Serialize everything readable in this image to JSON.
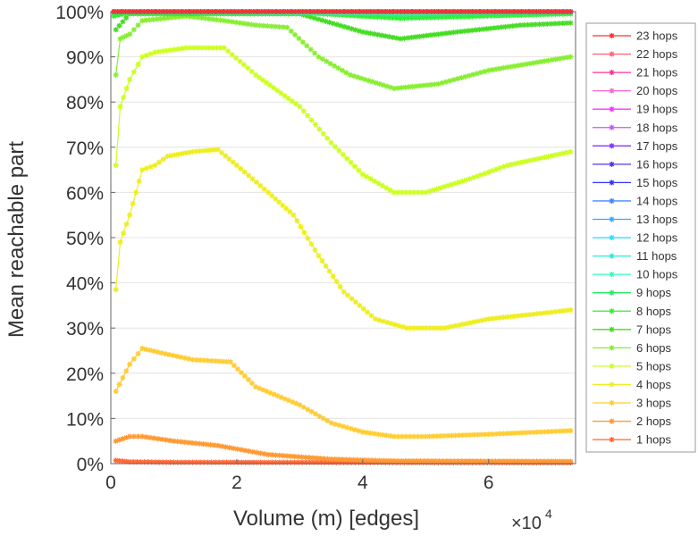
{
  "chart_data": {
    "type": "line",
    "xlabel": "Volume (m) [edges]",
    "ylabel": "Mean reachable part",
    "x_multiplier": "×10",
    "x_multiplier_exp": "4",
    "xlim": [
      0,
      7.38
    ],
    "ylim": [
      0,
      100
    ],
    "xticks": [
      "0",
      "2",
      "4",
      "6"
    ],
    "xtick_values": [
      0,
      2,
      4,
      6
    ],
    "yticks": [
      "0%",
      "10%",
      "20%",
      "30%",
      "40%",
      "50%",
      "60%",
      "70%",
      "80%",
      "90%",
      "100%"
    ],
    "ytick_values": [
      0,
      10,
      20,
      30,
      40,
      50,
      60,
      70,
      80,
      90,
      100
    ],
    "grid": true,
    "legend_position": "right-outside",
    "series": [
      {
        "name": "23 hops",
        "color": "#ff3333",
        "x": [
          0.05,
          7.3
        ],
        "y": [
          100,
          100
        ]
      },
      {
        "name": "22 hops",
        "color": "#ff6677",
        "x": [
          0.05,
          7.3
        ],
        "y": [
          100,
          100
        ]
      },
      {
        "name": "21 hops",
        "color": "#ff3399",
        "x": [
          0.05,
          7.3
        ],
        "y": [
          100,
          100
        ]
      },
      {
        "name": "20 hops",
        "color": "#ff66cc",
        "x": [
          0.05,
          7.3
        ],
        "y": [
          100,
          100
        ]
      },
      {
        "name": "19 hops",
        "color": "#ff33ff",
        "x": [
          0.05,
          7.3
        ],
        "y": [
          100,
          100
        ]
      },
      {
        "name": "18 hops",
        "color": "#cc55ff",
        "x": [
          0.05,
          7.3
        ],
        "y": [
          100,
          100
        ]
      },
      {
        "name": "17 hops",
        "color": "#8833ff",
        "x": [
          0.05,
          7.3
        ],
        "y": [
          100,
          100
        ]
      },
      {
        "name": "16 hops",
        "color": "#5533ee",
        "x": [
          0.05,
          7.3
        ],
        "y": [
          100,
          100
        ]
      },
      {
        "name": "15 hops",
        "color": "#3333ff",
        "x": [
          0.05,
          7.3
        ],
        "y": [
          100,
          100
        ]
      },
      {
        "name": "14 hops",
        "color": "#4488ff",
        "x": [
          0.05,
          7.3
        ],
        "y": [
          100,
          100
        ]
      },
      {
        "name": "13 hops",
        "color": "#33aaff",
        "x": [
          0.05,
          7.3
        ],
        "y": [
          100,
          100
        ]
      },
      {
        "name": "12 hops",
        "color": "#33ddff",
        "x": [
          0.05,
          7.3
        ],
        "y": [
          100,
          100
        ]
      },
      {
        "name": "11 hops",
        "color": "#22eedd",
        "x": [
          0.05,
          7.3
        ],
        "y": [
          100,
          100
        ]
      },
      {
        "name": "10 hops",
        "color": "#33ffbb",
        "x": [
          0.05,
          4.6,
          7.3
        ],
        "y": [
          100,
          99.7,
          100
        ]
      },
      {
        "name": "9 hops",
        "color": "#22ee66",
        "x": [
          0.05,
          3.2,
          4.6,
          7.3
        ],
        "y": [
          99.8,
          99.8,
          99.3,
          99.8
        ]
      },
      {
        "name": "8 hops",
        "color": "#33ee33",
        "x": [
          0.05,
          0.3,
          3.2,
          4.6,
          7.3
        ],
        "y": [
          99,
          99.8,
          99.6,
          98.5,
          99.5
        ]
      },
      {
        "name": "7 hops",
        "color": "#44dd22",
        "x": [
          0.08,
          0.3,
          3.0,
          4.0,
          4.6,
          5.5,
          6.5,
          7.3
        ],
        "y": [
          96,
          99.5,
          99.5,
          95.5,
          94,
          95.5,
          97,
          97.5
        ]
      },
      {
        "name": "6 hops",
        "color": "#88ee33",
        "x": [
          0.08,
          0.15,
          0.3,
          0.5,
          1.2,
          1.8,
          2.3,
          2.8,
          3.3,
          3.8,
          4.5,
          5.2,
          6.0,
          7.3
        ],
        "y": [
          86,
          94,
          95,
          98,
          99,
          98,
          97,
          96.5,
          90,
          86,
          83,
          84,
          87,
          90
        ]
      },
      {
        "name": "5 hops",
        "color": "#ccff22",
        "x": [
          0.08,
          0.15,
          0.3,
          0.5,
          0.7,
          1.2,
          1.8,
          2.3,
          2.7,
          3.0,
          3.5,
          4.0,
          4.5,
          5.0,
          5.7,
          6.3,
          7.3
        ],
        "y": [
          66,
          79,
          85,
          90,
          91,
          92,
          92,
          86,
          82,
          79,
          71,
          64,
          60,
          60,
          63,
          66,
          69
        ]
      },
      {
        "name": "4 hops",
        "color": "#eeee22",
        "x": [
          0.08,
          0.15,
          0.3,
          0.4,
          0.5,
          0.7,
          0.9,
          1.3,
          1.7,
          2.0,
          2.5,
          2.9,
          3.3,
          3.7,
          4.2,
          4.7,
          5.3,
          6.0,
          7.0,
          7.3
        ],
        "y": [
          38.5,
          49,
          55,
          60,
          65,
          66,
          68,
          69,
          69.5,
          66,
          60,
          55,
          46,
          38,
          32,
          30,
          30,
          32,
          33.5,
          34
        ]
      },
      {
        "name": "3 hops",
        "color": "#ffcc33",
        "x": [
          0.08,
          0.3,
          0.5,
          0.8,
          1.3,
          1.9,
          2.3,
          3.0,
          3.5,
          4.0,
          4.5,
          5.0,
          6.0,
          7.3
        ],
        "y": [
          16,
          22,
          25.5,
          24.5,
          23,
          22.5,
          17,
          13,
          9,
          7,
          6,
          6,
          6.5,
          7.3
        ]
      },
      {
        "name": "2 hops",
        "color": "#ff9933",
        "x": [
          0.08,
          0.3,
          0.5,
          1.0,
          1.7,
          2.5,
          3.5,
          4.5,
          7.3
        ],
        "y": [
          5,
          6,
          6,
          5,
          4,
          2,
          1,
          0.6,
          0.5
        ]
      },
      {
        "name": "1 hops",
        "color": "#ff6633",
        "x": [
          0.08,
          0.3,
          1.0,
          7.3
        ],
        "y": [
          0.7,
          0.4,
          0.3,
          0.2
        ]
      }
    ]
  }
}
